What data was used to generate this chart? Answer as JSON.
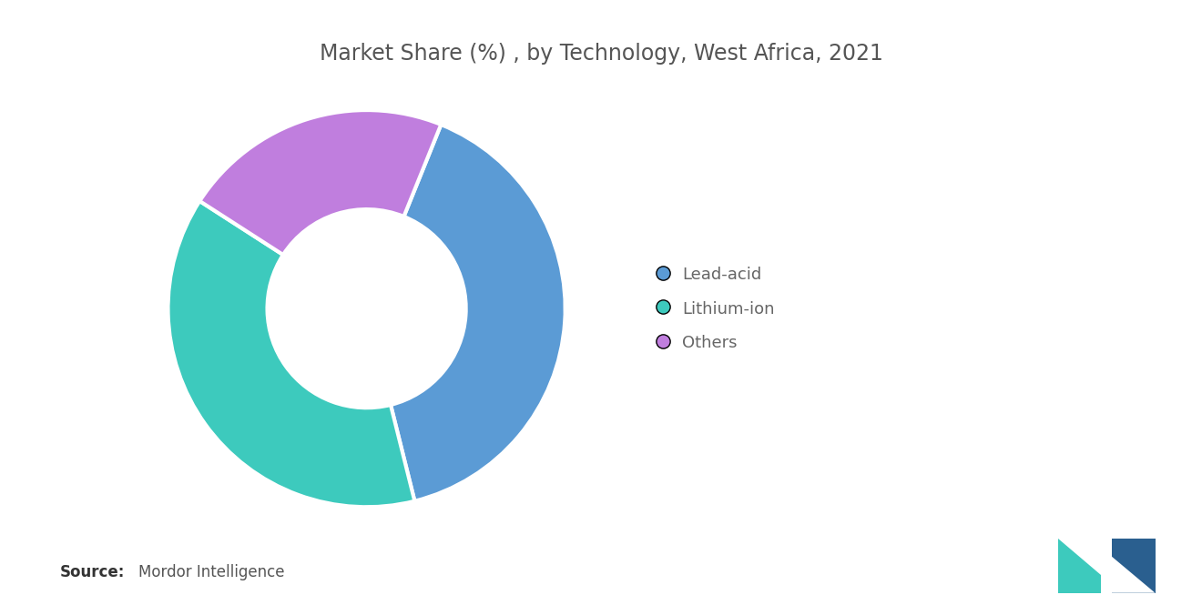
{
  "title": "Market Share (%) , by Technology, West Africa, 2021",
  "labels": [
    "Lead-acid",
    "Lithium-ion",
    "Others"
  ],
  "values": [
    40,
    38,
    22
  ],
  "colors": [
    "#5B9BD5",
    "#3DCABD",
    "#C07EDE"
  ],
  "startangle": 68,
  "background_color": "#FFFFFF",
  "title_fontsize": 17,
  "title_color": "#555555",
  "legend_fontsize": 13,
  "legend_color": "#666666",
  "source_bold": "Source:",
  "source_normal": "  Mordor Intelligence",
  "source_fontsize": 12,
  "donut_width": 0.5,
  "edge_color": "#FFFFFF",
  "edge_linewidth": 3.0
}
